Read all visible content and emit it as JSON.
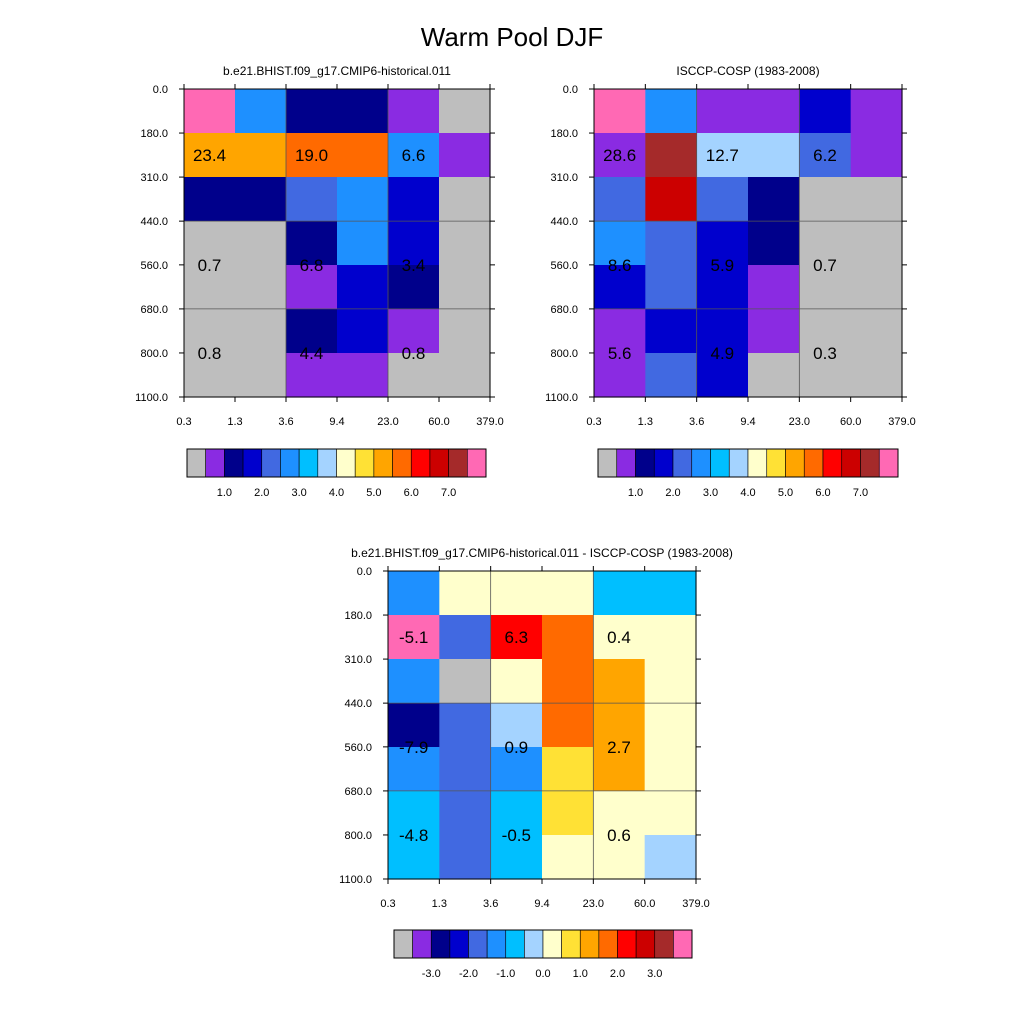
{
  "title": "Warm Pool DJF",
  "chart_data": [
    {
      "type": "heatmap",
      "title": "b.e21.BHIST.f09_g17.CMIP6-historical.011",
      "x_ticks": [
        "0.3",
        "1.3",
        "3.6",
        "9.4",
        "23.0",
        "60.0",
        "379.0"
      ],
      "y_ticks": [
        "0.0",
        "180.0",
        "310.0",
        "440.0",
        "560.0",
        "680.0",
        "800.0",
        "1100.0"
      ],
      "cells": [
        [
          "#ff69b4",
          "#1e90ff",
          "#00008b",
          "#00008b",
          "#8a2be2",
          "#bebebe"
        ],
        [
          "#ffa500",
          "#ffa500",
          "#ff6a00",
          "#ff6a00",
          "#1e90ff",
          "#8a2be2"
        ],
        [
          "#00008b",
          "#00008b",
          "#4169e1",
          "#1e90ff",
          "#0000cd",
          "#bebebe"
        ],
        [
          "#bebebe",
          "#bebebe",
          "#00008b",
          "#1e90ff",
          "#0000cd",
          "#bebebe"
        ],
        [
          "#bebebe",
          "#bebebe",
          "#8a2be2",
          "#0000cd",
          "#00008b",
          "#bebebe"
        ],
        [
          "#bebebe",
          "#bebebe",
          "#00008b",
          "#0000cd",
          "#8a2be2",
          "#bebebe"
        ],
        [
          "#bebebe",
          "#bebebe",
          "#8a2be2",
          "#8a2be2",
          "#bebebe",
          "#bebebe"
        ]
      ],
      "annotations": [
        {
          "text": "23.4",
          "col": 0.5,
          "row": 1.5
        },
        {
          "text": "19.0",
          "col": 2.5,
          "row": 1.5
        },
        {
          "text": "6.6",
          "col": 4.5,
          "row": 1.5
        },
        {
          "text": "0.7",
          "col": 0.5,
          "row": 4
        },
        {
          "text": "6.8",
          "col": 2.5,
          "row": 4
        },
        {
          "text": "3.4",
          "col": 4.5,
          "row": 4
        },
        {
          "text": "0.8",
          "col": 0.5,
          "row": 6
        },
        {
          "text": "4.4",
          "col": 2.5,
          "row": 6
        },
        {
          "text": "0.8",
          "col": 4.5,
          "row": 6
        }
      ],
      "colorbar": {
        "colors": [
          "#bebebe",
          "#8a2be2",
          "#00008b",
          "#0000cd",
          "#4169e1",
          "#1e90ff",
          "#00bfff",
          "#a4d3ff",
          "#ffffcc",
          "#ffe135",
          "#ffa500",
          "#ff6a00",
          "#ff0000",
          "#cc0000",
          "#a52a2a",
          "#ff69b4"
        ],
        "labels": [
          "1.0",
          "2.0",
          "3.0",
          "4.0",
          "5.0",
          "6.0",
          "7.0"
        ],
        "label_boundaries": [
          2,
          4,
          6,
          8,
          10,
          12,
          14
        ]
      }
    },
    {
      "type": "heatmap",
      "title": "ISCCP-COSP (1983-2008)",
      "x_ticks": [
        "0.3",
        "1.3",
        "3.6",
        "9.4",
        "23.0",
        "60.0",
        "379.0"
      ],
      "y_ticks": [
        "0.0",
        "180.0",
        "310.0",
        "440.0",
        "560.0",
        "680.0",
        "800.0",
        "1100.0"
      ],
      "cells": [
        [
          "#ff69b4",
          "#1e90ff",
          "#8a2be2",
          "#8a2be2",
          "#0000cd",
          "#8a2be2"
        ],
        [
          "#8a2be2",
          "#a52a2a",
          "#a4d3ff",
          "#a4d3ff",
          "#4169e1",
          "#8a2be2"
        ],
        [
          "#4169e1",
          "#cc0000",
          "#4169e1",
          "#00008b",
          "#bebebe",
          "#bebebe"
        ],
        [
          "#1e90ff",
          "#4169e1",
          "#0000cd",
          "#00008b",
          "#bebebe",
          "#bebebe"
        ],
        [
          "#0000cd",
          "#4169e1",
          "#0000cd",
          "#8a2be2",
          "#bebebe",
          "#bebebe"
        ],
        [
          "#8a2be2",
          "#0000cd",
          "#0000cd",
          "#8a2be2",
          "#bebebe",
          "#bebebe"
        ],
        [
          "#8a2be2",
          "#4169e1",
          "#0000cd",
          "#bebebe",
          "#bebebe",
          "#bebebe"
        ]
      ],
      "annotations": [
        {
          "text": "28.6",
          "col": 0.5,
          "row": 1.5
        },
        {
          "text": "12.7",
          "col": 2.5,
          "row": 1.5
        },
        {
          "text": "6.2",
          "col": 4.5,
          "row": 1.5
        },
        {
          "text": "8.6",
          "col": 0.5,
          "row": 4
        },
        {
          "text": "5.9",
          "col": 2.5,
          "row": 4
        },
        {
          "text": "0.7",
          "col": 4.5,
          "row": 4
        },
        {
          "text": "5.6",
          "col": 0.5,
          "row": 6
        },
        {
          "text": "4.9",
          "col": 2.5,
          "row": 6
        },
        {
          "text": "0.3",
          "col": 4.5,
          "row": 6
        }
      ],
      "colorbar": {
        "colors": [
          "#bebebe",
          "#8a2be2",
          "#00008b",
          "#0000cd",
          "#4169e1",
          "#1e90ff",
          "#00bfff",
          "#a4d3ff",
          "#ffffcc",
          "#ffe135",
          "#ffa500",
          "#ff6a00",
          "#ff0000",
          "#cc0000",
          "#a52a2a",
          "#ff69b4"
        ],
        "labels": [
          "1.0",
          "2.0",
          "3.0",
          "4.0",
          "5.0",
          "6.0",
          "7.0"
        ],
        "label_boundaries": [
          2,
          4,
          6,
          8,
          10,
          12,
          14
        ]
      }
    },
    {
      "type": "heatmap",
      "title": "b.e21.BHIST.f09_g17.CMIP6-historical.011 - ISCCP-COSP (1983-2008)",
      "x_ticks": [
        "0.3",
        "1.3",
        "3.6",
        "9.4",
        "23.0",
        "60.0",
        "379.0"
      ],
      "y_ticks": [
        "0.0",
        "180.0",
        "310.0",
        "440.0",
        "560.0",
        "680.0",
        "800.0",
        "1100.0"
      ],
      "cells": [
        [
          "#1e90ff",
          "#ffffcc",
          "#ffffcc",
          "#ffffcc",
          "#00bfff",
          "#00bfff"
        ],
        [
          "#ff69b4",
          "#4169e1",
          "#ff0000",
          "#ff6a00",
          "#ffffcc",
          "#ffffcc"
        ],
        [
          "#1e90ff",
          "#bebebe",
          "#ffffcc",
          "#ff6a00",
          "#ffa500",
          "#ffffcc"
        ],
        [
          "#00008b",
          "#4169e1",
          "#a4d3ff",
          "#ff6a00",
          "#ffa500",
          "#ffffcc"
        ],
        [
          "#1e90ff",
          "#4169e1",
          "#1e90ff",
          "#ffe135",
          "#ffa500",
          "#ffffcc"
        ],
        [
          "#00bfff",
          "#4169e1",
          "#00bfff",
          "#ffe135",
          "#ffffcc",
          "#ffffcc"
        ],
        [
          "#00bfff",
          "#4169e1",
          "#00bfff",
          "#ffffcc",
          "#ffffcc",
          "#a4d3ff"
        ]
      ],
      "annotations": [
        {
          "text": "-5.1",
          "col": 0.5,
          "row": 1.5
        },
        {
          "text": "6.3",
          "col": 2.5,
          "row": 1.5
        },
        {
          "text": "0.4",
          "col": 4.5,
          "row": 1.5
        },
        {
          "text": "-7.9",
          "col": 0.5,
          "row": 4
        },
        {
          "text": "0.9",
          "col": 2.5,
          "row": 4
        },
        {
          "text": "2.7",
          "col": 4.5,
          "row": 4
        },
        {
          "text": "-4.8",
          "col": 0.5,
          "row": 6
        },
        {
          "text": "-0.5",
          "col": 2.5,
          "row": 6
        },
        {
          "text": "0.6",
          "col": 4.5,
          "row": 6
        }
      ],
      "colorbar": {
        "colors": [
          "#bebebe",
          "#8a2be2",
          "#00008b",
          "#0000cd",
          "#4169e1",
          "#1e90ff",
          "#00bfff",
          "#a4d3ff",
          "#ffffcc",
          "#ffe135",
          "#ffa500",
          "#ff6a00",
          "#ff0000",
          "#cc0000",
          "#a52a2a",
          "#ff69b4"
        ],
        "labels": [
          "-3.0",
          "-2.0",
          "-1.0",
          "0.0",
          "1.0",
          "2.0",
          "3.0"
        ],
        "label_boundaries": [
          2,
          4,
          6,
          8,
          10,
          12,
          14
        ]
      }
    }
  ]
}
